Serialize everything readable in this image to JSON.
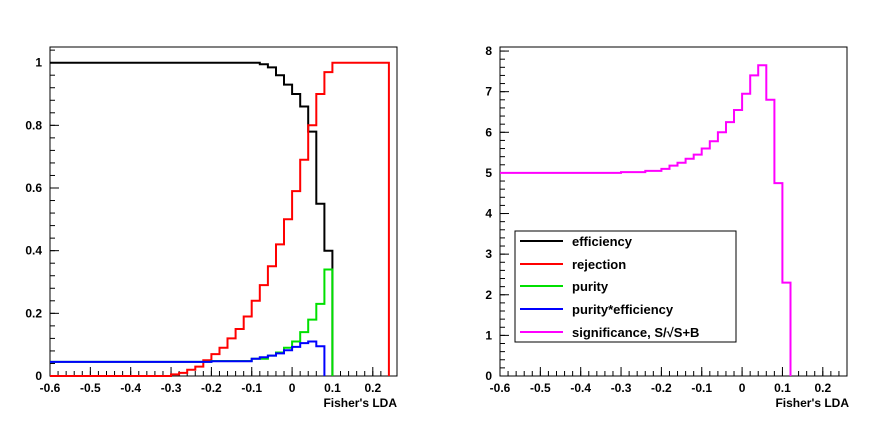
{
  "chart_data": [
    {
      "type": "line",
      "xlabel": "Fisher's LDA",
      "ylabel": "",
      "xlim": [
        -0.6,
        0.26
      ],
      "ylim": [
        0,
        1.05
      ],
      "xticks": [
        "-0.6",
        "-0.5",
        "-0.4",
        "-0.3",
        "-0.2",
        "-0.1",
        "0",
        "0.1",
        "0.2"
      ],
      "yticks": [
        "0",
        "0.2",
        "0.4",
        "0.6",
        "0.8",
        "1"
      ],
      "grid": false,
      "series": [
        {
          "name": "efficiency",
          "color": "#000000",
          "step": true,
          "x": [
            -0.6,
            -0.3,
            -0.1,
            -0.08,
            -0.06,
            -0.04,
            -0.02,
            0.0,
            0.02,
            0.04,
            0.06,
            0.08,
            0.1
          ],
          "y": [
            1.0,
            1.0,
            1.0,
            0.995,
            0.985,
            0.96,
            0.93,
            0.9,
            0.86,
            0.78,
            0.55,
            0.4,
            0.0
          ]
        },
        {
          "name": "rejection",
          "color": "#ff0000",
          "step": true,
          "x": [
            -0.6,
            -0.4,
            -0.3,
            -0.28,
            -0.26,
            -0.24,
            -0.22,
            -0.2,
            -0.18,
            -0.16,
            -0.14,
            -0.12,
            -0.1,
            -0.08,
            -0.06,
            -0.04,
            -0.02,
            0.0,
            0.02,
            0.04,
            0.06,
            0.08,
            0.1,
            0.236,
            0.24
          ],
          "y": [
            0.0,
            0.0,
            0.005,
            0.01,
            0.02,
            0.03,
            0.05,
            0.07,
            0.09,
            0.12,
            0.15,
            0.19,
            0.24,
            0.29,
            0.35,
            0.42,
            0.5,
            0.59,
            0.69,
            0.8,
            0.9,
            0.97,
            1.0,
            1.0,
            0.0
          ]
        },
        {
          "name": "purity",
          "color": "#00e000",
          "step": true,
          "x": [
            -0.6,
            -0.3,
            -0.2,
            -0.1,
            -0.06,
            -0.04,
            -0.02,
            0.0,
            0.02,
            0.04,
            0.06,
            0.08,
            0.1
          ],
          "y": [
            0.045,
            0.045,
            0.048,
            0.055,
            0.065,
            0.075,
            0.09,
            0.11,
            0.14,
            0.18,
            0.23,
            0.34,
            0.0
          ]
        },
        {
          "name": "purity*efficiency",
          "color": "#0000ff",
          "step": true,
          "x": [
            -0.6,
            -0.3,
            -0.2,
            -0.1,
            -0.08,
            -0.06,
            -0.04,
            -0.02,
            0.0,
            0.02,
            0.04,
            0.06,
            0.08
          ],
          "y": [
            0.045,
            0.045,
            0.047,
            0.055,
            0.06,
            0.065,
            0.072,
            0.082,
            0.093,
            0.105,
            0.11,
            0.095,
            0.0
          ]
        }
      ]
    },
    {
      "type": "line",
      "xlabel": "Fisher's LDA",
      "ylabel": "",
      "xlim": [
        -0.6,
        0.26
      ],
      "ylim": [
        0,
        8.1
      ],
      "xticks": [
        "-0.6",
        "-0.5",
        "-0.4",
        "-0.3",
        "-0.2",
        "-0.1",
        "0",
        "0.1",
        "0.2"
      ],
      "yticks": [
        "0",
        "1",
        "2",
        "3",
        "4",
        "5",
        "6",
        "7",
        "8"
      ],
      "grid": false,
      "legend": {
        "placement": "lower-left",
        "entries": [
          {
            "label": "efficiency",
            "color": "#000000"
          },
          {
            "label": "rejection",
            "color": "#ff0000"
          },
          {
            "label": "purity",
            "color": "#00e000"
          },
          {
            "label": "purity*efficiency",
            "color": "#0000ff"
          },
          {
            "label": "significance, S/√S+B",
            "color": "#ff00ff"
          }
        ]
      },
      "series": [
        {
          "name": "significance, S/√S+B",
          "color": "#ff00ff",
          "step": true,
          "x": [
            -0.6,
            -0.3,
            -0.24,
            -0.2,
            -0.18,
            -0.16,
            -0.14,
            -0.12,
            -0.1,
            -0.08,
            -0.06,
            -0.04,
            -0.02,
            0.0,
            0.02,
            0.04,
            0.06,
            0.08,
            0.1
          ],
          "y": [
            5.0,
            5.02,
            5.05,
            5.1,
            5.18,
            5.25,
            5.35,
            5.45,
            5.6,
            5.78,
            6.0,
            6.25,
            6.55,
            6.95,
            7.4,
            7.65,
            6.8,
            4.75,
            2.3
          ]
        }
      ]
    }
  ]
}
